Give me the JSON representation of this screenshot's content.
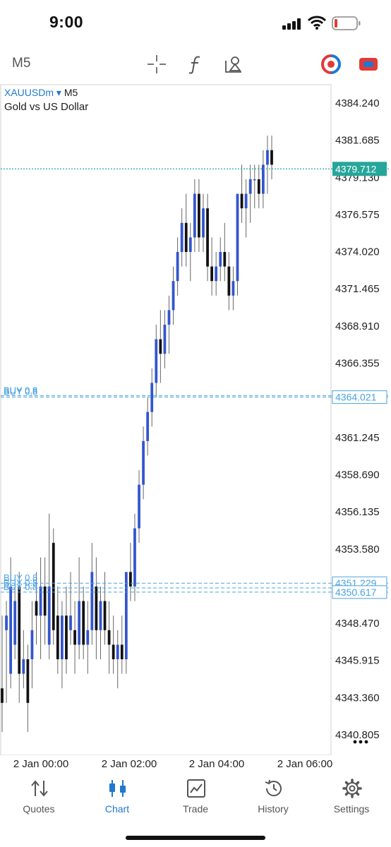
{
  "status_bar": {
    "time": "9:00"
  },
  "toolbar": {
    "timeframe": "M5",
    "buttons": [
      {
        "icon": "crosshair-icon"
      },
      {
        "icon": "function-icon"
      },
      {
        "icon": "objects-icon"
      },
      {
        "icon": "one-click-trading-icon"
      },
      {
        "icon": "account-switch-icon"
      }
    ]
  },
  "chart_header": {
    "symbol": "XAUUSDm",
    "dropdown": "▾",
    "timeframe": "M5",
    "description": "Gold vs US Dollar"
  },
  "colors": {
    "bull": "#3355cc",
    "bear": "#111111",
    "accent": "#1f78d1",
    "bid_line": "#26a69a",
    "order_line": "#4aa3df"
  },
  "chart_data": {
    "type": "candlestick",
    "symbol": "XAUUSDm",
    "timeframe": "M5",
    "y_ticks": [
      4384.24,
      4381.685,
      4379.13,
      4376.575,
      4374.02,
      4371.465,
      4368.91,
      4366.355,
      4363.8,
      4361.245,
      4358.69,
      4356.135,
      4353.58,
      4351.025,
      4348.47,
      4345.915,
      4343.36,
      4340.805
    ],
    "ylim": [
      4385.5,
      4339.4
    ],
    "x_ticks": [
      "2 Jan 00:00",
      "2 Jan 02:00",
      "2 Jan 04:00",
      "2 Jan 06:00"
    ],
    "bid": {
      "label": "4379.712",
      "value": 4379.712
    },
    "orders": [
      {
        "label": "BUY 0.8",
        "value": 4364.12,
        "price_label": ""
      },
      {
        "label": "BUY 0.8",
        "value": 4364.021,
        "price_label": "4364.021"
      },
      {
        "label": "BUY 0.8",
        "value": 4351.229,
        "price_label": "4351.229"
      },
      {
        "label": "BUY 0.8",
        "value": 4350.9,
        "price_label": ""
      },
      {
        "label": "BUY 0.8",
        "value": 4350.617,
        "price_label": "4350.617"
      }
    ],
    "candles": [
      [
        4344,
        4349,
        4341,
        4343
      ],
      [
        4348,
        4350,
        4343,
        4349
      ],
      [
        4345,
        4353,
        4344,
        4351
      ],
      [
        4347,
        4351,
        4346,
        4350
      ],
      [
        4351,
        4352,
        4343,
        4345
      ],
      [
        4345,
        4348,
        4344,
        4346
      ],
      [
        4346,
        4347,
        4341,
        4343
      ],
      [
        4346,
        4350,
        4344,
        4348
      ],
      [
        4350,
        4352,
        4347,
        4349
      ],
      [
        4349,
        4353,
        4346,
        4351
      ],
      [
        4351,
        4353,
        4347,
        4349
      ],
      [
        4347,
        4356,
        4346,
        4351
      ],
      [
        4354,
        4355,
        4347,
        4348
      ],
      [
        4349,
        4351,
        4345,
        4346
      ],
      [
        4346,
        4350,
        4344,
        4349
      ],
      [
        4349,
        4351,
        4345,
        4346
      ],
      [
        4348,
        4352,
        4347,
        4349
      ],
      [
        4348,
        4350,
        4345,
        4347
      ],
      [
        4347,
        4353,
        4346,
        4350
      ],
      [
        4350,
        4351,
        4346,
        4347
      ],
      [
        4347,
        4350,
        4345,
        4348
      ],
      [
        4348,
        4354,
        4347,
        4352
      ],
      [
        4351,
        4353,
        4346,
        4348
      ],
      [
        4348,
        4351,
        4346,
        4350
      ],
      [
        4350,
        4352,
        4347,
        4348
      ],
      [
        4348,
        4350,
        4345,
        4347
      ],
      [
        4347,
        4349,
        4345,
        4346
      ],
      [
        4346,
        4348,
        4344,
        4347
      ],
      [
        4347,
        4349,
        4345,
        4346
      ],
      [
        4346,
        4352,
        4345,
        4352
      ],
      [
        4352,
        4354,
        4350,
        4351
      ],
      [
        4351,
        4356,
        4350,
        4355
      ],
      [
        4355,
        4359,
        4354,
        4358
      ],
      [
        4358,
        4362,
        4357,
        4361
      ],
      [
        4361,
        4364,
        4360,
        4363
      ],
      [
        4363,
        4366,
        4362,
        4365
      ],
      [
        4365,
        4369,
        4364,
        4368
      ],
      [
        4368,
        4370,
        4365,
        4367
      ],
      [
        4367,
        4370,
        4366,
        4369
      ],
      [
        4369,
        4371,
        4367,
        4370
      ],
      [
        4370,
        4373,
        4369,
        4372
      ],
      [
        4372,
        4375,
        4371,
        4374
      ],
      [
        4374,
        4377,
        4373,
        4376
      ],
      [
        4376,
        4378,
        4373,
        4374
      ],
      [
        4374,
        4376,
        4372,
        4375
      ],
      [
        4375,
        4379,
        4374,
        4378
      ],
      [
        4378,
        4379,
        4374,
        4375
      ],
      [
        4375,
        4378,
        4374,
        4377
      ],
      [
        4377,
        4378,
        4372,
        4373
      ],
      [
        4373,
        4375,
        4371,
        4372
      ],
      [
        4372,
        4374,
        4371,
        4373
      ],
      [
        4373,
        4375,
        4372,
        4374
      ],
      [
        4374,
        4376,
        4372,
        4373
      ],
      [
        4373,
        4374,
        4370,
        4371
      ],
      [
        4371,
        4373,
        4370,
        4372
      ],
      [
        4372,
        4378,
        4371,
        4378
      ],
      [
        4378,
        4380,
        4376,
        4377
      ],
      [
        4377,
        4379,
        4375,
        4378
      ],
      [
        4378,
        4380,
        4376,
        4379
      ],
      [
        4379,
        4380,
        4377,
        4379
      ],
      [
        4379,
        4380,
        4377,
        4378
      ],
      [
        4378,
        4381,
        4377,
        4380
      ],
      [
        4380,
        4382,
        4378,
        4381
      ],
      [
        4381,
        4382,
        4379,
        4380
      ]
    ]
  },
  "chart_menu_icon": "more-icon",
  "tabs": [
    {
      "label": "Quotes",
      "icon": "quotes-icon",
      "active": false
    },
    {
      "label": "Chart",
      "icon": "chart-icon",
      "active": true
    },
    {
      "label": "Trade",
      "icon": "trade-icon",
      "active": false
    },
    {
      "label": "History",
      "icon": "history-icon",
      "active": false
    },
    {
      "label": "Settings",
      "icon": "settings-icon",
      "active": false
    }
  ]
}
